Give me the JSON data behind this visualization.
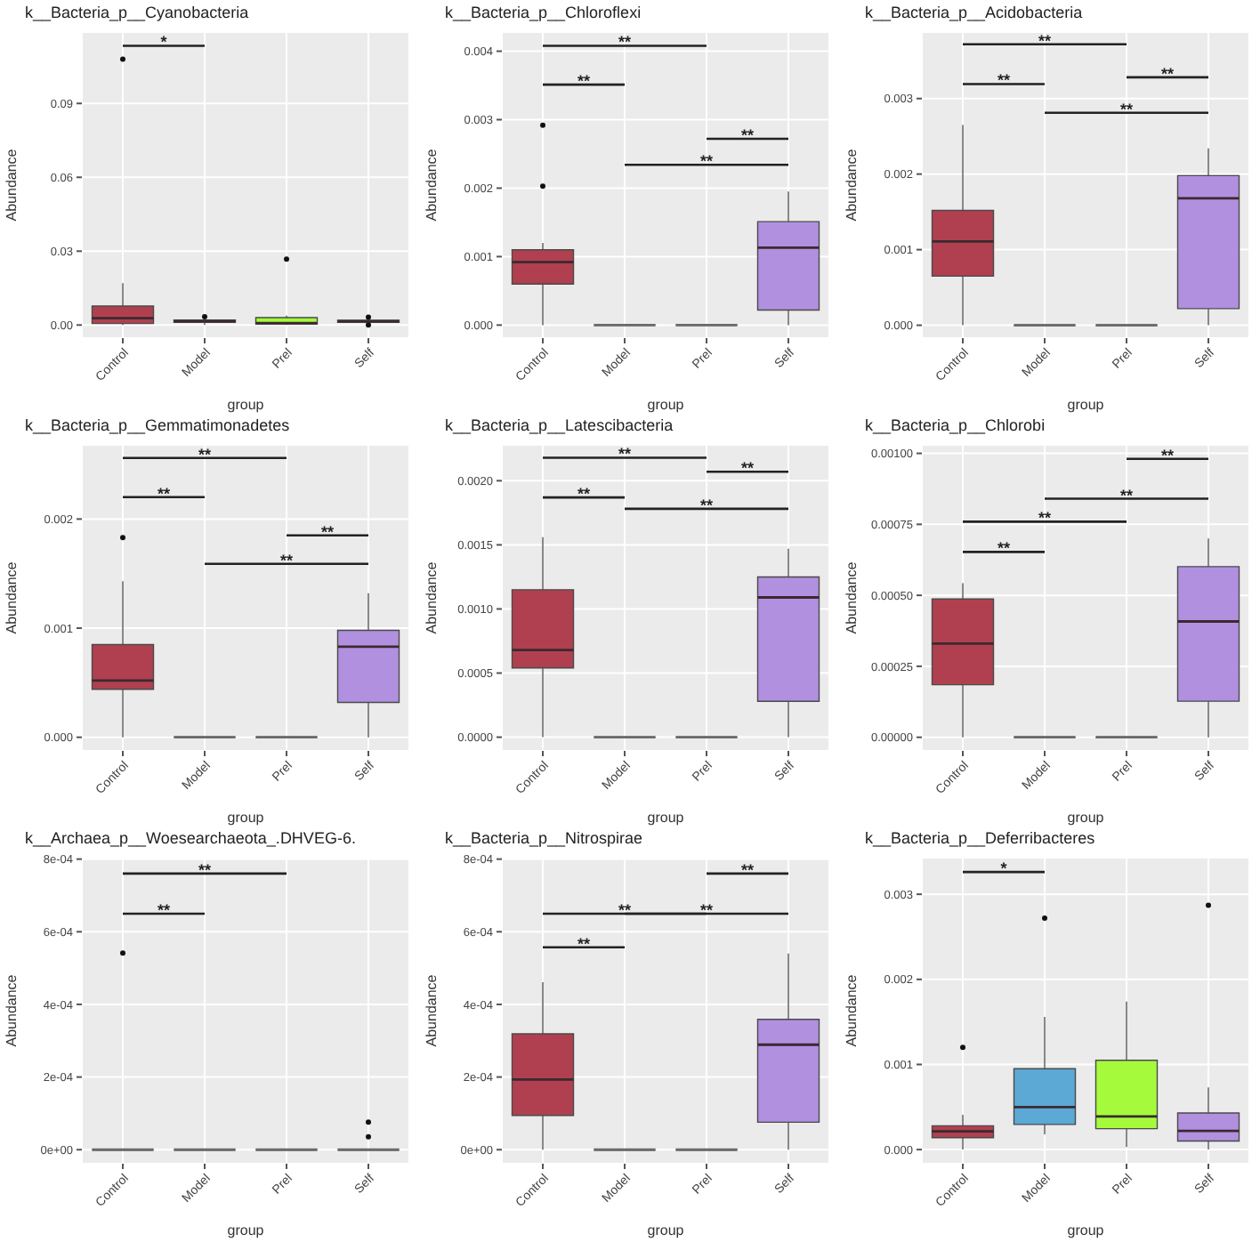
{
  "chart_data": [
    {
      "type": "box",
      "title": "k__Bacteria_p__Cyanobacteria",
      "xlabel": "group",
      "ylabel": "Abundance",
      "categories": [
        "Control",
        "Model",
        "Prel",
        "Self"
      ],
      "colors": [
        "#b0404f",
        "#5ba9d4",
        "#a5fb3b",
        "#b190e0"
      ],
      "ylim": [
        -0.0053,
        0.119
      ],
      "yticks": [
        {
          "value": 0,
          "label": "0.00"
        },
        {
          "value": 0.03,
          "label": "0.03"
        },
        {
          "value": 0.06,
          "label": "0.06"
        },
        {
          "value": 0.09,
          "label": "0.09"
        }
      ],
      "grid": true,
      "boxes": [
        {
          "low": 0,
          "q1": 0.0006,
          "median": 0.0028,
          "q3": 0.0077,
          "high": 0.017,
          "outliers": [
            0.108
          ]
        },
        {
          "low": 0,
          "q1": 0.0011,
          "median": 0.0015,
          "q3": 0.002,
          "high": 0.0025,
          "outliers": [
            0.0034
          ]
        },
        {
          "low": 0,
          "q1": 0.0004,
          "median": 0.0008,
          "q3": 0.003,
          "high": 0.0038,
          "outliers": [
            0.0268
          ]
        },
        {
          "low": 0.0005,
          "q1": 0.0011,
          "median": 0.0015,
          "q3": 0.0019,
          "high": 0.0022,
          "outliers": [
            0.0032,
            0
          ]
        }
      ],
      "annotations": [
        "*"
      ]
    },
    {
      "type": "box",
      "title": "k__Bacteria_p__Chloroflexi",
      "xlabel": "group",
      "ylabel": "Abundance",
      "categories": [
        "Control",
        "Model",
        "Prel",
        "Self"
      ],
      "colors": [
        "#b0404f",
        "#6b6b6b",
        "#6b6b6b",
        "#b190e0"
      ],
      "ylim": [
        -0.00019,
        0.00428
      ],
      "yticks": [
        {
          "value": 0,
          "label": "0.000"
        },
        {
          "value": 0.001,
          "label": "0.001"
        },
        {
          "value": 0.002,
          "label": "0.002"
        },
        {
          "value": 0.003,
          "label": "0.003"
        },
        {
          "value": 0.004,
          "label": "0.004"
        }
      ],
      "grid": true,
      "boxes": [
        {
          "low": 0,
          "q1": 0.0006,
          "median": 0.00092,
          "q3": 0.0011,
          "high": 0.0012,
          "outliers": [
            0.00292,
            0.00203
          ]
        },
        {
          "low": 0,
          "q1": 0,
          "median": 0,
          "q3": 0,
          "high": 0
        },
        {
          "low": 0,
          "q1": 0,
          "median": 0,
          "q3": 0,
          "high": 0
        },
        {
          "low": 0,
          "q1": 0.00022,
          "median": 0.00113,
          "q3": 0.00151,
          "high": 0.00195
        }
      ],
      "annotations": [
        "**",
        "**",
        "**",
        "**"
      ]
    },
    {
      "type": "box",
      "title": "k__Bacteria_p__Acidobacteria",
      "xlabel": "group",
      "ylabel": "Abundance",
      "categories": [
        "Control",
        "Model",
        "Prel",
        "Self"
      ],
      "colors": [
        "#b0404f",
        "#6b6b6b",
        "#6b6b6b",
        "#b190e0"
      ],
      "ylim": [
        -0.00017,
        0.00388
      ],
      "yticks": [
        {
          "value": 0,
          "label": "0.000"
        },
        {
          "value": 0.001,
          "label": "0.001"
        },
        {
          "value": 0.002,
          "label": "0.002"
        },
        {
          "value": 0.003,
          "label": "0.003"
        }
      ],
      "grid": true,
      "boxes": [
        {
          "low": 0,
          "q1": 0.00065,
          "median": 0.00111,
          "q3": 0.00152,
          "high": 0.00265
        },
        {
          "low": 0,
          "q1": 0,
          "median": 0,
          "q3": 0,
          "high": 0
        },
        {
          "low": 0,
          "q1": 0,
          "median": 0,
          "q3": 0,
          "high": 0
        },
        {
          "low": 0,
          "q1": 0.00022,
          "median": 0.00168,
          "q3": 0.00198,
          "high": 0.00234
        }
      ],
      "annotations": [
        "**",
        "**",
        "**",
        "**"
      ]
    },
    {
      "type": "box",
      "title": "k__Bacteria_p__Gemmatimonadetes",
      "xlabel": "group",
      "ylabel": "Abundance",
      "categories": [
        "Control",
        "Model",
        "Prel",
        "Self"
      ],
      "colors": [
        "#b0404f",
        "#6b6b6b",
        "#6b6b6b",
        "#b190e0"
      ],
      "ylim": [
        -0.000125,
        0.00268
      ],
      "yticks": [
        {
          "value": 0,
          "label": "0.000"
        },
        {
          "value": 0.001,
          "label": "0.001"
        },
        {
          "value": 0.002,
          "label": "0.002"
        }
      ],
      "grid": true,
      "boxes": [
        {
          "low": 0,
          "q1": 0.00044,
          "median": 0.00052,
          "q3": 0.00085,
          "high": 0.00143,
          "outliers": [
            0.00183
          ]
        },
        {
          "low": 0,
          "q1": 0,
          "median": 0,
          "q3": 0,
          "high": 0
        },
        {
          "low": 0,
          "q1": 0,
          "median": 0,
          "q3": 0,
          "high": 0
        },
        {
          "low": 0,
          "q1": 0.00032,
          "median": 0.00083,
          "q3": 0.00098,
          "high": 0.00132
        }
      ],
      "annotations": [
        "**",
        "**",
        "**",
        "**"
      ]
    },
    {
      "type": "box",
      "title": "k__Bacteria_p__Latescibacteria",
      "xlabel": "group",
      "ylabel": "Abundance",
      "categories": [
        "Control",
        "Model",
        "Prel",
        "Self"
      ],
      "colors": [
        "#b0404f",
        "#6b6b6b",
        "#6b6b6b",
        "#b190e0"
      ],
      "ylim": [
        -0.000107,
        0.00228
      ],
      "yticks": [
        {
          "value": 0,
          "label": "0.0000"
        },
        {
          "value": 0.0005,
          "label": "0.0005"
        },
        {
          "value": 0.001,
          "label": "0.0010"
        },
        {
          "value": 0.0015,
          "label": "0.0015"
        },
        {
          "value": 0.002,
          "label": "0.0020"
        }
      ],
      "grid": true,
      "boxes": [
        {
          "low": 0,
          "q1": 0.00054,
          "median": 0.00068,
          "q3": 0.00115,
          "high": 0.00156
        },
        {
          "low": 0,
          "q1": 0,
          "median": 0,
          "q3": 0,
          "high": 0
        },
        {
          "low": 0,
          "q1": 0,
          "median": 0,
          "q3": 0,
          "high": 0
        },
        {
          "low": 0,
          "q1": 0.00028,
          "median": 0.00109,
          "q3": 0.00125,
          "high": 0.00147
        }
      ],
      "annotations": [
        "**",
        "**",
        "**",
        "**"
      ]
    },
    {
      "type": "box",
      "title": "k__Bacteria_p__Chlorobi",
      "xlabel": "group",
      "ylabel": "Abundance",
      "categories": [
        "Control",
        "Model",
        "Prel",
        "Self"
      ],
      "colors": [
        "#b0404f",
        "#6b6b6b",
        "#6b6b6b",
        "#b190e0"
      ],
      "ylim": [
        -4.8e-05,
        0.00103
      ],
      "yticks": [
        {
          "value": 0,
          "label": "0.00000"
        },
        {
          "value": 0.00025,
          "label": "0.00025"
        },
        {
          "value": 0.0005,
          "label": "0.00050"
        },
        {
          "value": 0.00075,
          "label": "0.00075"
        },
        {
          "value": 0.001,
          "label": "0.00100"
        }
      ],
      "grid": true,
      "boxes": [
        {
          "low": 0,
          "q1": 0.000185,
          "median": 0.00033,
          "q3": 0.000487,
          "high": 0.000543
        },
        {
          "low": 0,
          "q1": 0,
          "median": 0,
          "q3": 0,
          "high": 0
        },
        {
          "low": 0,
          "q1": 0,
          "median": 0,
          "q3": 0,
          "high": 0
        },
        {
          "low": 0,
          "q1": 0.000127,
          "median": 0.000408,
          "q3": 0.000601,
          "high": 0.0007
        }
      ],
      "annotations": [
        "**",
        "**",
        "**",
        "**"
      ]
    },
    {
      "type": "box",
      "title": "k__Archaea_p__Woesearchaeota_.DHVEG-6.",
      "xlabel": "group",
      "ylabel": "Abundance",
      "categories": [
        "Control",
        "Model",
        "Prel",
        "Self"
      ],
      "colors": [
        "#6b6b6b",
        "#6b6b6b",
        "#6b6b6b",
        "#6b6b6b"
      ],
      "ylim": [
        -3.86e-05,
        0.000804
      ],
      "yticks": [
        {
          "value": 0,
          "label": "0e+00"
        },
        {
          "value": 0.0002,
          "label": "2e-04"
        },
        {
          "value": 0.0004,
          "label": "4e-04"
        },
        {
          "value": 0.0006,
          "label": "6e-04"
        },
        {
          "value": 0.0008,
          "label": "8e-04"
        }
      ],
      "grid": true,
      "boxes": [
        {
          "low": 0,
          "q1": 0,
          "median": 0,
          "q3": 0,
          "high": 0,
          "outliers": [
            0.000541
          ]
        },
        {
          "low": 0,
          "q1": 0,
          "median": 0,
          "q3": 0,
          "high": 0
        },
        {
          "low": 0,
          "q1": 0,
          "median": 0,
          "q3": 0,
          "high": 0
        },
        {
          "low": 0,
          "q1": 0,
          "median": 0,
          "q3": 0,
          "high": 0,
          "outliers": [
            7.57e-05,
            3.57e-05
          ]
        }
      ],
      "annotations": [
        "**",
        "**"
      ]
    },
    {
      "type": "box",
      "title": "k__Bacteria_p__Nitrospirae",
      "xlabel": "group",
      "ylabel": "Abundance",
      "categories": [
        "Control",
        "Model",
        "Prel",
        "Self"
      ],
      "colors": [
        "#b0404f",
        "#6b6b6b",
        "#6b6b6b",
        "#b190e0"
      ],
      "ylim": [
        -3.86e-05,
        0.000804
      ],
      "yticks": [
        {
          "value": 0,
          "label": "0e+00"
        },
        {
          "value": 0.0002,
          "label": "2e-04"
        },
        {
          "value": 0.0004,
          "label": "4e-04"
        },
        {
          "value": 0.0006,
          "label": "6e-04"
        },
        {
          "value": 0.0008,
          "label": "8e-04"
        }
      ],
      "grid": true,
      "boxes": [
        {
          "low": 0,
          "q1": 9.43e-05,
          "median": 0.000193,
          "q3": 0.000319,
          "high": 0.000461
        },
        {
          "low": 0,
          "q1": 0,
          "median": 0,
          "q3": 0,
          "high": 0
        },
        {
          "low": 0,
          "q1": 0,
          "median": 0,
          "q3": 0,
          "high": 0
        },
        {
          "low": 0,
          "q1": 7.57e-05,
          "median": 0.000289,
          "q3": 0.000359,
          "high": 0.00054
        }
      ],
      "annotations": [
        "**",
        "**",
        "**",
        "**"
      ]
    },
    {
      "type": "box",
      "title": "k__Bacteria_p__Deferribacteres",
      "xlabel": "group",
      "ylabel": "Abundance",
      "categories": [
        "Control",
        "Model",
        "Prel",
        "Self"
      ],
      "colors": [
        "#b0404f",
        "#5ba9d4",
        "#a5fb3b",
        "#b190e0"
      ],
      "ylim": [
        -0.000166,
        0.00343
      ],
      "yticks": [
        {
          "value": 0,
          "label": "0.000"
        },
        {
          "value": 0.001,
          "label": "0.001"
        },
        {
          "value": 0.002,
          "label": "0.002"
        },
        {
          "value": 0.003,
          "label": "0.003"
        }
      ],
      "grid": true,
      "boxes": [
        {
          "low": 0,
          "q1": 0.00014,
          "median": 0.000215,
          "q3": 0.00028,
          "high": 0.00041,
          "outliers": [
            0.0012
          ]
        },
        {
          "low": 0.00018,
          "q1": 0.000295,
          "median": 0.0005,
          "q3": 0.00095,
          "high": 0.00156,
          "outliers": [
            0.00272
          ]
        },
        {
          "low": 3e-05,
          "q1": 0.000246,
          "median": 0.00039,
          "q3": 0.00105,
          "high": 0.00174
        },
        {
          "low": 0,
          "q1": 0.0001,
          "median": 0.00022,
          "q3": 0.00043,
          "high": 0.00073,
          "outliers": [
            0.00287
          ]
        }
      ],
      "annotations": [
        "*"
      ]
    }
  ]
}
